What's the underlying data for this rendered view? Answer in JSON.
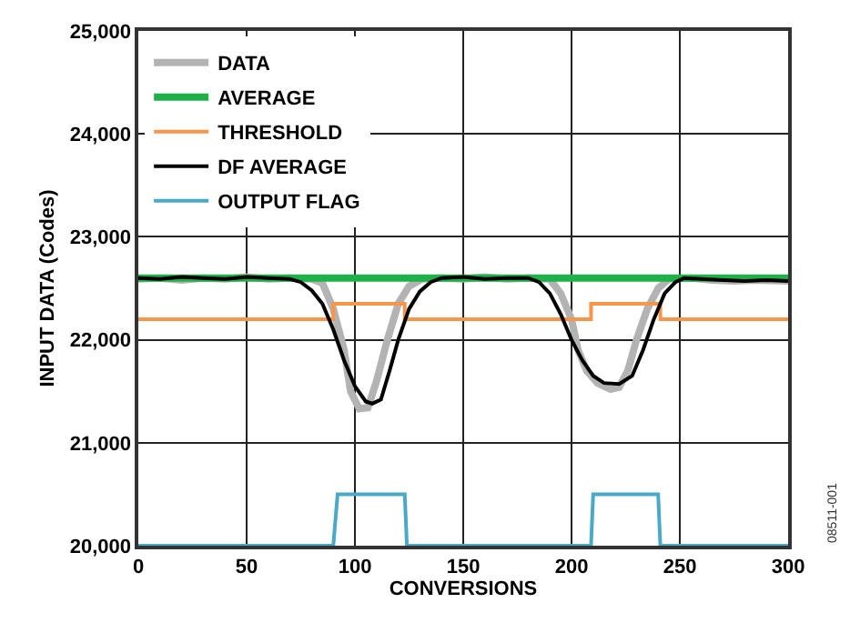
{
  "chart_data": {
    "type": "line",
    "xlabel": "CONVERSIONS",
    "ylabel": "INPUT DATA (Codes)",
    "xlim": [
      0,
      300
    ],
    "xticks": [
      0,
      50,
      100,
      150,
      200,
      250,
      300
    ],
    "ylim": [
      20000,
      25000
    ],
    "yticks": [
      {
        "value": 20000,
        "label": "20,000"
      },
      {
        "value": 21000,
        "label": "21,000"
      },
      {
        "value": 22000,
        "label": "22,000"
      },
      {
        "value": 23000,
        "label": "23,000"
      },
      {
        "value": 24000,
        "label": "24,000"
      },
      {
        "value": 25000,
        "label": "25,000"
      }
    ],
    "grid": true,
    "legend": "top left",
    "line_style": "solid",
    "marker": "none",
    "annotations": [
      "08511-001"
    ],
    "series": [
      {
        "name": "DATA",
        "color": "#b3b3b3",
        "x": [
          0,
          10,
          20,
          30,
          40,
          50,
          60,
          70,
          80,
          85,
          90,
          95,
          98,
          102,
          106,
          110,
          115,
          120,
          125,
          131,
          140,
          150,
          160,
          170,
          180,
          190,
          195,
          200,
          203,
          207,
          212,
          218,
          222,
          226,
          230,
          235,
          240,
          245,
          255,
          265,
          275,
          285,
          300
        ],
        "values": [
          22590,
          22600,
          22580,
          22600,
          22590,
          22610,
          22590,
          22600,
          22590,
          22550,
          22300,
          21900,
          21500,
          21330,
          21340,
          21600,
          22000,
          22350,
          22520,
          22590,
          22600,
          22590,
          22610,
          22590,
          22600,
          22590,
          22450,
          22200,
          21900,
          21700,
          21580,
          21520,
          21540,
          21700,
          22000,
          22300,
          22500,
          22590,
          22600,
          22580,
          22570,
          22580,
          22570
        ]
      },
      {
        "name": "AVERAGE",
        "color": "#1fb04a",
        "x": [
          0,
          300
        ],
        "values": [
          22600,
          22600
        ]
      },
      {
        "name": "THRESHOLD",
        "color": "#f7954a",
        "x": [
          0,
          90,
          90,
          123,
          123,
          209,
          209,
          241,
          241,
          300
        ],
        "values": [
          22200,
          22200,
          22350,
          22350,
          22200,
          22200,
          22350,
          22350,
          22200,
          22200
        ]
      },
      {
        "name": "DF AVERAGE",
        "color": "#000000",
        "x": [
          0,
          10,
          20,
          30,
          40,
          50,
          60,
          70,
          75,
          80,
          85,
          90,
          95,
          100,
          105,
          108,
          112,
          116,
          120,
          125,
          130,
          135,
          140,
          150,
          160,
          170,
          180,
          185,
          190,
          195,
          200,
          205,
          210,
          215,
          222,
          228,
          233,
          238,
          243,
          248,
          252,
          260,
          270,
          280,
          290,
          300
        ],
        "values": [
          22600,
          22590,
          22610,
          22600,
          22590,
          22610,
          22600,
          22590,
          22560,
          22480,
          22350,
          22100,
          21800,
          21550,
          21400,
          21380,
          21420,
          21700,
          22000,
          22300,
          22470,
          22560,
          22600,
          22610,
          22590,
          22600,
          22600,
          22560,
          22450,
          22250,
          22000,
          21800,
          21650,
          21580,
          21570,
          21650,
          21900,
          22200,
          22450,
          22560,
          22600,
          22590,
          22580,
          22570,
          22580,
          22570
        ]
      },
      {
        "name": "OUTPUT FLAG",
        "color": "#4aa8c8",
        "x": [
          0,
          90,
          92,
          123,
          124,
          209,
          210,
          240,
          241,
          300
        ],
        "values": [
          20000,
          20000,
          20500,
          20500,
          20000,
          20000,
          20500,
          20500,
          20000,
          20000
        ]
      }
    ]
  }
}
